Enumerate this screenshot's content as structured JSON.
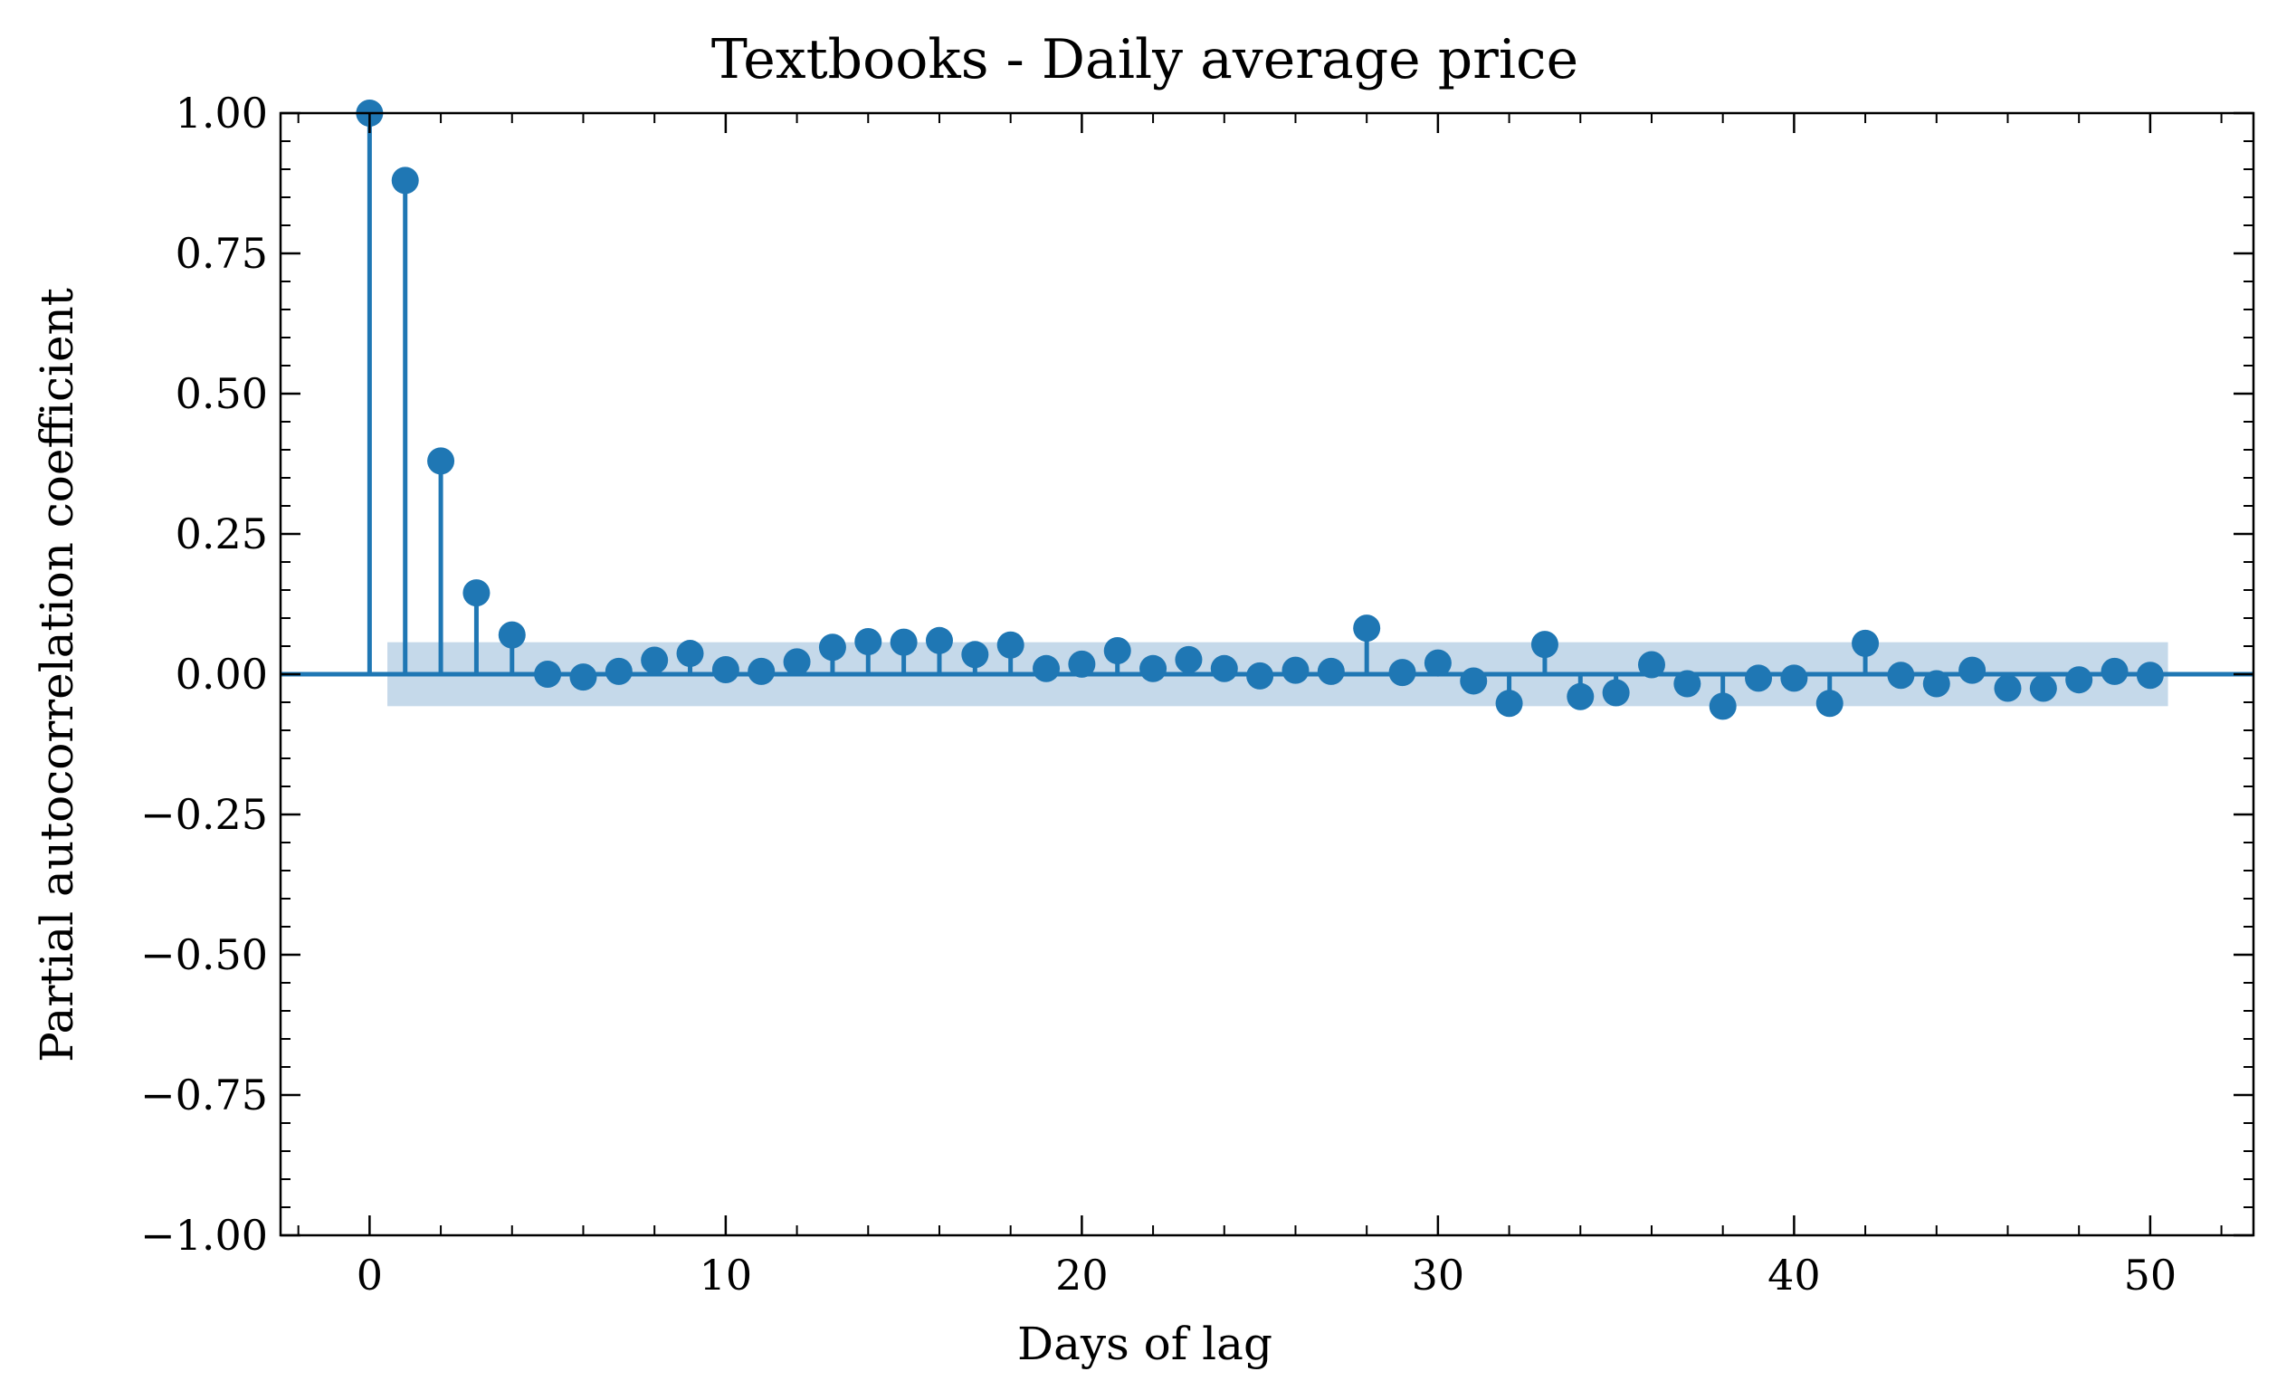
{
  "chart_data": {
    "type": "stem",
    "title": "Textbooks - Daily average price",
    "xlabel": "Days of lag",
    "ylabel": "Partial autocorrelation coefficient",
    "xlim": [
      -2.5,
      52.9
    ],
    "ylim": [
      -1.0,
      1.0
    ],
    "x_ticks": [
      0,
      10,
      20,
      30,
      40,
      50
    ],
    "y_ticks": [
      1.0,
      0.75,
      0.5,
      0.25,
      0.0,
      -0.25,
      -0.5,
      -0.75,
      -1.0
    ],
    "x_tick_labels": [
      "0",
      "10",
      "20",
      "30",
      "40",
      "50"
    ],
    "y_tick_labels": [
      "1.00",
      "0.75",
      "0.50",
      "0.25",
      "0.00",
      "−0.25",
      "−0.50",
      "−0.75",
      "−1.00"
    ],
    "confidence_band": {
      "lower": -0.057,
      "upper": 0.057,
      "x_start": 0.5,
      "x_end": 50.5
    },
    "colors": {
      "series": "#1f77b4",
      "band": "#c5d9ea"
    },
    "lags": [
      0,
      1,
      2,
      3,
      4,
      5,
      6,
      7,
      8,
      9,
      10,
      11,
      12,
      13,
      14,
      15,
      16,
      17,
      18,
      19,
      20,
      21,
      22,
      23,
      24,
      25,
      26,
      27,
      28,
      29,
      30,
      31,
      32,
      33,
      34,
      35,
      36,
      37,
      38,
      39,
      40,
      41,
      42,
      43,
      44,
      45,
      46,
      47,
      48,
      49,
      50
    ],
    "values": [
      1.0,
      0.88,
      0.38,
      0.145,
      0.07,
      0.0,
      -0.005,
      0.005,
      0.025,
      0.037,
      0.008,
      0.005,
      0.022,
      0.048,
      0.058,
      0.057,
      0.06,
      0.035,
      0.052,
      0.01,
      0.018,
      0.042,
      0.01,
      0.026,
      0.01,
      -0.003,
      0.007,
      0.005,
      0.082,
      0.003,
      0.02,
      -0.012,
      -0.052,
      0.053,
      -0.04,
      -0.033,
      0.017,
      -0.017,
      -0.057,
      -0.007,
      -0.007,
      -0.052,
      0.055,
      -0.002,
      -0.017,
      0.007,
      -0.025,
      -0.025,
      -0.01,
      0.005,
      -0.002
    ]
  }
}
